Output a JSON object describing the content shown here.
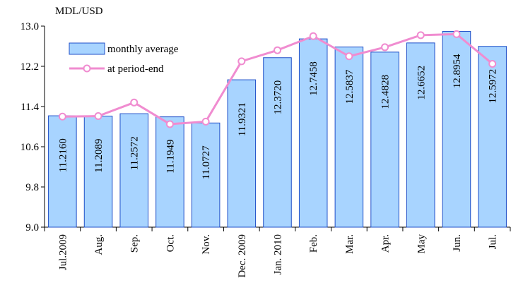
{
  "chart_data": {
    "type": "bar",
    "title": "MDL/USD",
    "categories": [
      "Jul.2009",
      "Aug.",
      "Sep.",
      "Oct.",
      "Nov.",
      "Dec. 2009",
      "Jan. 2010",
      "Feb.",
      "Mar.",
      "Apr.",
      "May",
      "Jun.",
      "Jul."
    ],
    "series": [
      {
        "name": "monthly average",
        "type": "bar",
        "color": "#a8d4ff",
        "values": [
          11.216,
          11.2089,
          11.2572,
          11.1949,
          11.0727,
          11.9321,
          12.372,
          12.7458,
          12.5837,
          12.4828,
          12.6652,
          12.8954,
          12.5972
        ],
        "value_labels": [
          "11.2160",
          "11.2089",
          "11.2572",
          "11.1949",
          "11.0727",
          "11.9321",
          "12.3720",
          "12.7458",
          "12.5837",
          "12.4828",
          "12.6652",
          "12.8954",
          "12.5972"
        ]
      },
      {
        "name": "at period-end",
        "type": "line",
        "color": "#f08cd0",
        "values": [
          11.2,
          11.21,
          11.48,
          11.05,
          11.1,
          12.3,
          12.52,
          12.8,
          12.4,
          12.58,
          12.82,
          12.84,
          12.25
        ]
      }
    ],
    "ylim": [
      9.0,
      13.0
    ],
    "yticks": [
      {
        "value": 9.0,
        "label": "9.0"
      },
      9.8,
      10.6,
      11.4,
      12.2,
      {
        "value": 13.0,
        "label": "13.0"
      }
    ],
    "grid": false
  }
}
